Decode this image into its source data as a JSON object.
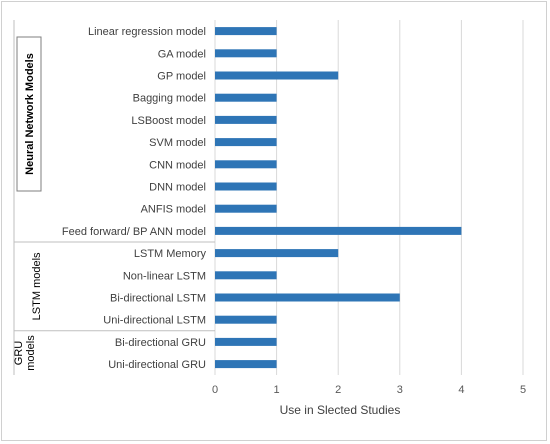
{
  "chart_data": {
    "type": "bar",
    "orientation": "horizontal",
    "categories": [
      "Linear regression model",
      "GA model",
      "GP model",
      "Bagging model",
      "LSBoost model",
      "SVM model",
      "CNN model",
      "DNN model",
      "ANFIS model",
      "Feed forward/ BP ANN model",
      "LSTM Memory",
      "Non-linear LSTM",
      "Bi-directional LSTM",
      "Uni-directional LSTM",
      "Bi-directional GRU",
      "Uni-directional GRU"
    ],
    "values": [
      1,
      1,
      2,
      1,
      1,
      1,
      1,
      1,
      1,
      4,
      2,
      1,
      3,
      1,
      1,
      1
    ],
    "groups": [
      {
        "label": "Neural Network Models",
        "count": 10,
        "boxed": true
      },
      {
        "label": "LSTM models",
        "count": 4,
        "boxed": false
      },
      {
        "label": "GRU models",
        "label_lines": [
          "GRU",
          "models"
        ],
        "count": 2,
        "boxed": false
      }
    ],
    "xlabel": "Use in Slected Studies",
    "xlim": [
      0,
      5
    ],
    "xticks": [
      0,
      1,
      2,
      3,
      4,
      5
    ],
    "grid": true,
    "bar_color": "#2e75b6",
    "grid_color": "#d9d9d9"
  }
}
